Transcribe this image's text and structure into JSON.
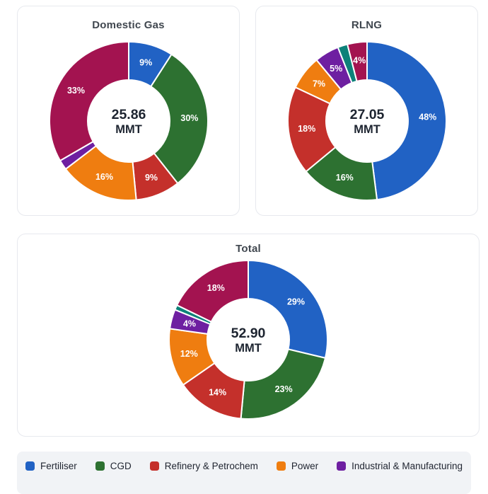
{
  "colors": {
    "fertiliser": "#2162c4",
    "cgd": "#2d7131",
    "refinery": "#c4302b",
    "power": "#ef7d10",
    "industrial": "#6e1fa1",
    "unlabeled_teal": "#0d8179",
    "unlabeled_crimson": "#a31350",
    "title_text": "#40474f",
    "center_text": "#1d2430",
    "card_border": "#e7e9ee",
    "legend_bg": "#f1f3f6"
  },
  "legend": {
    "items": [
      {
        "label": "Fertiliser",
        "color_key": "fertiliser"
      },
      {
        "label": "CGD",
        "color_key": "cgd"
      },
      {
        "label": "Refinery & Petrochem",
        "color_key": "refinery"
      },
      {
        "label": "Power",
        "color_key": "power"
      },
      {
        "label": "Industrial & Manufacturing",
        "color_key": "industrial"
      }
    ]
  },
  "chart_data": [
    {
      "type": "donut",
      "title": "Domestic Gas",
      "center": {
        "value": "25.86",
        "unit": "MMT"
      },
      "start_angle_deg": 0,
      "direction": "clockwise",
      "segments": [
        {
          "legend_label": "Fertiliser",
          "pct": 9,
          "data_label": "9%",
          "color_key": "fertiliser"
        },
        {
          "legend_label": "CGD",
          "pct": 30,
          "data_label": "30%",
          "color_key": "cgd"
        },
        {
          "legend_label": "Refinery & Petrochem",
          "pct": 9,
          "data_label": "9%",
          "color_key": "refinery"
        },
        {
          "legend_label": "Power",
          "pct": 16,
          "data_label": "16%",
          "color_key": "power"
        },
        {
          "legend_label": "Industrial & Manufacturing",
          "pct": 2,
          "data_label": "",
          "color_key": "industrial"
        },
        {
          "legend_label": null,
          "pct": 33,
          "data_label": "33%",
          "color_key": "unlabeled_crimson"
        }
      ]
    },
    {
      "type": "donut",
      "title": "RLNG",
      "center": {
        "value": "27.05",
        "unit": "MMT"
      },
      "start_angle_deg": 0,
      "direction": "clockwise",
      "segments": [
        {
          "legend_label": "Fertiliser",
          "pct": 48,
          "data_label": "48%",
          "color_key": "fertiliser"
        },
        {
          "legend_label": "CGD",
          "pct": 16,
          "data_label": "16%",
          "color_key": "cgd"
        },
        {
          "legend_label": "Refinery & Petrochem",
          "pct": 18,
          "data_label": "18%",
          "color_key": "refinery"
        },
        {
          "legend_label": "Power",
          "pct": 7,
          "data_label": "7%",
          "color_key": "power"
        },
        {
          "legend_label": "Industrial & Manufacturing",
          "pct": 5,
          "data_label": "5%",
          "color_key": "industrial"
        },
        {
          "legend_label": null,
          "pct": 2,
          "data_label": "",
          "color_key": "unlabeled_teal"
        },
        {
          "legend_label": null,
          "pct": 4,
          "data_label": "4%",
          "color_key": "unlabeled_crimson"
        }
      ]
    },
    {
      "type": "donut",
      "title": "Total",
      "center": {
        "value": "52.90",
        "unit": "MMT"
      },
      "start_angle_deg": 0,
      "direction": "clockwise",
      "segments": [
        {
          "legend_label": "Fertiliser",
          "pct": 29,
          "data_label": "29%",
          "color_key": "fertiliser"
        },
        {
          "legend_label": "CGD",
          "pct": 23,
          "data_label": "23%",
          "color_key": "cgd"
        },
        {
          "legend_label": "Refinery & Petrochem",
          "pct": 14,
          "data_label": "14%",
          "color_key": "refinery"
        },
        {
          "legend_label": "Power",
          "pct": 12,
          "data_label": "12%",
          "color_key": "power"
        },
        {
          "legend_label": "Industrial & Manufacturing",
          "pct": 4,
          "data_label": "4%",
          "color_key": "industrial"
        },
        {
          "legend_label": null,
          "pct": 1,
          "data_label": "",
          "color_key": "unlabeled_teal"
        },
        {
          "legend_label": null,
          "pct": 18,
          "data_label": "18%",
          "color_key": "unlabeled_crimson"
        }
      ]
    }
  ]
}
